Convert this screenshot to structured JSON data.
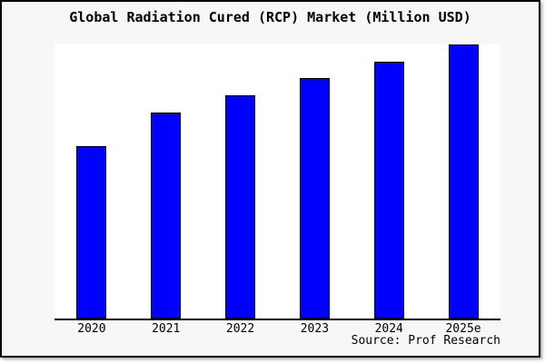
{
  "chart_data": {
    "type": "bar",
    "title": "Global Radiation Cured (RCP) Market (Million USD)",
    "categories": [
      "2020",
      "2021",
      "2022",
      "2023",
      "2024",
      "2025e"
    ],
    "values": [
      62.8,
      75.1,
      81.4,
      87.7,
      93.7,
      100
    ],
    "value_note": "No y-axis or data labels shown; values are relative bar heights normalized so 2025e = 100",
    "xlabel": "",
    "ylabel": "",
    "ylim": [
      0,
      100
    ],
    "grid": false,
    "legend": false,
    "y_axis_visible": false,
    "source": "Source: Prof Research",
    "colors": {
      "bar_fill": "#0000ff",
      "bar_border": "#000000",
      "figure_background": "#f7f7f7",
      "plot_background": "#ffffff",
      "frame_border": "#000000",
      "text": "#000000"
    }
  }
}
